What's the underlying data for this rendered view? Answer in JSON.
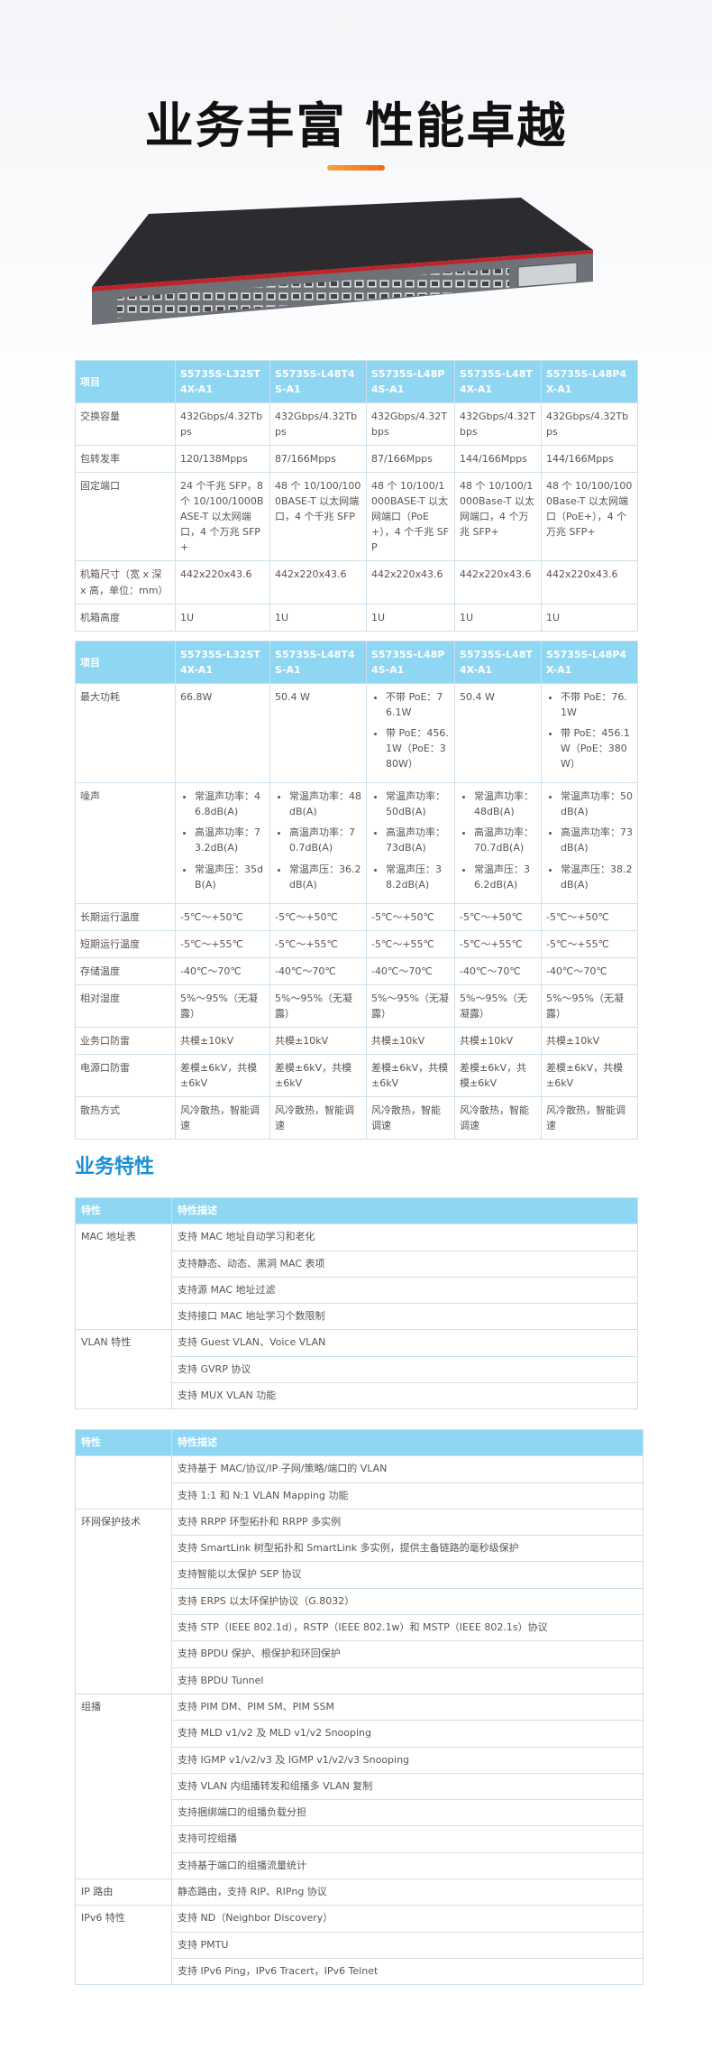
{
  "title": "业务丰富 性能卓越",
  "spec_tables": [
    {
      "header": [
        "项目",
        "S5735S-L32ST4X-A1",
        "S5735S-L48T4S-A1",
        "S5735S-L48P4S-A1",
        "S5735S-L48T4X-A1",
        "S5735S-L48P4X-A1"
      ],
      "rows": [
        {
          "label": "交换容量",
          "cells": [
            "432Gbps/4.32Tbps",
            "432Gbps/4.32Tbps",
            "432Gbps/4.32Tbps",
            "432Gbps/4.32Tbps",
            "432Gbps/4.32Tbps"
          ]
        },
        {
          "label": "包转发率",
          "cells": [
            "120/138Mpps",
            "87/166Mpps",
            "87/166Mpps",
            "144/166Mpps",
            "144/166Mpps"
          ]
        },
        {
          "label": "固定端口",
          "cells": [
            "24 个千兆 SFP，8 个 10/100/1000BASE-T 以太网端口，4 个万兆 SFP+",
            "48 个 10/100/1000BASE-T 以太网端口，4 个千兆 SFP",
            "48 个 10/100/1000BASE-T 以太网端口（PoE+），4 个千兆 SFP",
            "48 个 10/100/1000Base-T 以太网端口，4 个万兆 SFP+",
            "48 个 10/100/1000Base-T 以太网端口（PoE+），4 个万兆 SFP+"
          ]
        },
        {
          "label": "机箱尺寸（宽 x 深 x 高，单位：mm）",
          "cells": [
            "442x220x43.6",
            "442x220x43.6",
            "442x220x43.6",
            "442x220x43.6",
            "442x220x43.6"
          ]
        },
        {
          "label": "机箱高度",
          "cells": [
            "1U",
            "1U",
            "1U",
            "1U",
            "1U"
          ]
        }
      ]
    },
    {
      "header": [
        "项目",
        "S5735S-L32ST4X-A1",
        "S5735S-L48T4S-A1",
        "S5735S-L48P4S-A1",
        "S5735S-L48T4X-A1",
        "S5735S-L48P4X-A1"
      ],
      "rows": [
        {
          "label": "最大功耗",
          "cells": [
            "66.8W",
            "50.4 W",
            [
              "不带 PoE：76.1W",
              "带 PoE：456.1W（PoE：380W）"
            ],
            "50.4 W",
            [
              "不带 PoE：76.1W",
              "带 PoE：456.1W（PoE：380W）"
            ]
          ]
        },
        {
          "label": "噪声",
          "cells": [
            [
              "常温声功率：46.8dB(A)",
              "高温声功率：73.2dB(A)",
              "常温声压：35dB(A)"
            ],
            [
              "常温声功率：48dB(A)",
              "高温声功率：70.7dB(A)",
              "常温声压：36.2dB(A)"
            ],
            [
              "常温声功率：50dB(A)",
              "高温声功率：73dB(A)",
              "常温声压：38.2dB(A)"
            ],
            [
              "常温声功率：48dB(A)",
              "高温声功率：70.7dB(A)",
              "常温声压：36.2dB(A)"
            ],
            [
              "常温声功率：50dB(A)",
              "高温声功率：73dB(A)",
              "常温声压：38.2dB(A)"
            ]
          ]
        },
        {
          "label": "长期运行温度",
          "cells": [
            "-5℃～+50℃",
            "-5℃～+50℃",
            "-5℃～+50℃",
            "-5℃～+50℃",
            "-5℃～+50℃"
          ]
        },
        {
          "label": "短期运行温度",
          "cells": [
            "-5℃～+55℃",
            "-5℃～+55℃",
            "-5℃～+55℃",
            "-5℃～+55℃",
            "-5℃～+55℃"
          ]
        },
        {
          "label": "存储温度",
          "cells": [
            "-40℃～70℃",
            "-40℃～70℃",
            "-40℃～70℃",
            "-40℃～70℃",
            "-40℃～70℃"
          ]
        },
        {
          "label": "相对湿度",
          "cells": [
            "5%～95%（无凝露）",
            "5%～95%（无凝露）",
            "5%～95%（无凝露）",
            "5%～95%（无凝露）",
            "5%～95%（无凝露）"
          ]
        },
        {
          "label": "业务口防雷",
          "cells": [
            "共模±10kV",
            "共模±10kV",
            "共模±10kV",
            "共模±10kV",
            "共模±10kV"
          ]
        },
        {
          "label": "电源口防雷",
          "cells": [
            "差模±6kV，共模±6kV",
            "差模±6kV，共模±6kV",
            "差模±6kV，共模±6kV",
            "差模±6kV，共模±6kV",
            "差模±6kV，共模±6kV"
          ]
        },
        {
          "label": "散热方式",
          "cells": [
            "风冷散热，智能调速",
            "风冷散热，智能调速",
            "风冷散热，智能调速",
            "风冷散热，智能调速",
            "风冷散热，智能调速"
          ]
        }
      ]
    }
  ],
  "section_heading": "业务特性",
  "feature_tables": [
    {
      "header": [
        "特性",
        "特性描述"
      ],
      "groups": [
        {
          "label": "MAC 地址表",
          "items": [
            "支持 MAC 地址自动学习和老化",
            "支持静态、动态、黑洞 MAC 表项",
            "支持源 MAC 地址过滤",
            "支持接口 MAC 地址学习个数限制"
          ]
        },
        {
          "label": "VLAN 特性",
          "items": [
            "支持 Guest VLAN、Voice VLAN",
            "支持 GVRP 协议",
            "支持 MUX VLAN 功能"
          ]
        }
      ]
    },
    {
      "header": [
        "特性",
        "特性描述"
      ],
      "groups": [
        {
          "items": [
            "支持基于 MAC/协议/IP 子网/策略/端口的 VLAN",
            "支持 1:1 和 N:1 VLAN Mapping 功能"
          ]
        },
        {
          "label": "环网保护技术",
          "items": [
            "支持 RRPP 环型拓扑和 RRPP 多实例",
            "支持 SmartLink 树型拓扑和 SmartLink 多实例，提供主备链路的毫秒级保护",
            "支持智能以太保护 SEP 协议",
            "支持 ERPS 以太环保护协议（G.8032）",
            "支持 STP（IEEE 802.1d），RSTP（IEEE 802.1w）和 MSTP（IEEE 802.1s）协议",
            "支持 BPDU 保护、根保护和环回保护",
            "支持 BPDU Tunnel"
          ]
        },
        {
          "label": "组播",
          "items": [
            "支持 PIM DM、PIM SM、PIM SSM",
            "支持 MLD v1/v2 及 MLD v1/v2 Snooping",
            "支持 IGMP v1/v2/v3 及 IGMP v1/v2/v3 Snooping",
            "支持 VLAN 内组播转发和组播多 VLAN 复制",
            "支持捆绑端口的组播负载分担",
            "支持可控组播",
            "支持基于端口的组播流量统计"
          ]
        },
        {
          "label": "IP 路由",
          "items": [
            "静态路由，支持 RIP、RIPng 协议"
          ]
        },
        {
          "label": "IPv6 特性",
          "items": [
            "支持 ND（Neighbor Discovery）",
            "支持 PMTU",
            "支持 IPv6 Ping，IPv6 Tracert，IPv6 Telnet"
          ]
        }
      ]
    }
  ]
}
